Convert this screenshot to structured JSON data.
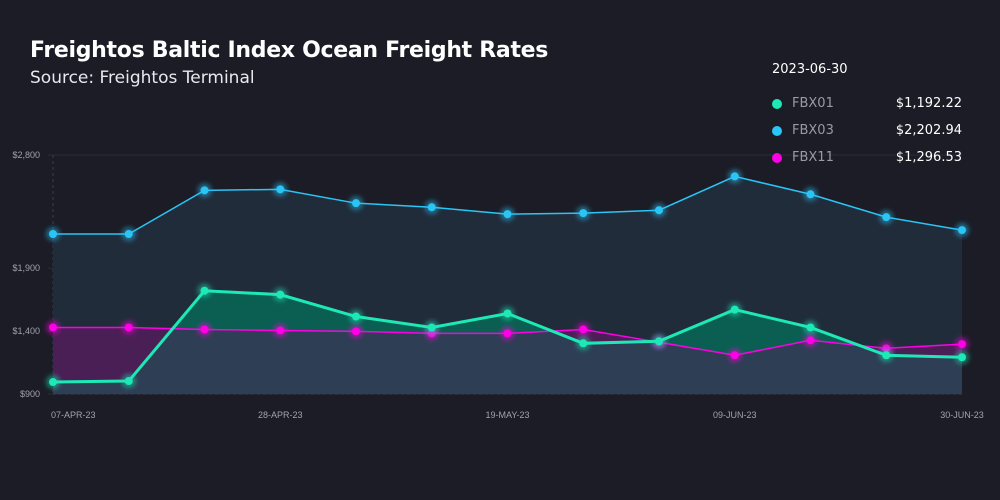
{
  "chart_data": {
    "type": "line",
    "title": "Freightos Baltic Index Ocean Freight Rates",
    "subtitle": "Source: Freightos Terminal",
    "x": [
      "07-APR-23",
      "14-APR-23",
      "21-APR-23",
      "28-APR-23",
      "05-MAY-23",
      "12-MAY-23",
      "19-MAY-23",
      "26-MAY-23",
      "02-JUN-23",
      "09-JUN-23",
      "16-JUN-23",
      "23-JUN-23",
      "30-JUN-23"
    ],
    "x_tick_labels": [
      "07-APR-23",
      "28-APR-23",
      "19-MAY-23",
      "09-JUN-23",
      "30-JUN-23"
    ],
    "y_tick_labels": [
      "$900",
      "$1,400",
      "$1,900",
      "$2,800"
    ],
    "y_ticks": [
      900,
      1400,
      1900,
      2800
    ],
    "ylim": [
      900,
      2800
    ],
    "grid": true,
    "legend_placement": "top-right",
    "series": [
      {
        "name": "FBX01",
        "color": "#1de9b6",
        "values": [
          995,
          1003,
          1721,
          1690,
          1516,
          1429,
          1540,
          1303,
          1319,
          1571,
          1429,
          1208,
          1192.22
        ]
      },
      {
        "name": "FBX03",
        "color": "#29c5f6",
        "values": [
          2172,
          2172,
          2519,
          2527,
          2417,
          2385,
          2330,
          2338,
          2361,
          2630,
          2488,
          2306,
          2202.94
        ]
      },
      {
        "name": "FBX11",
        "color": "#ff00e6",
        "values": [
          1429,
          1429,
          1413,
          1405,
          1398,
          1382,
          1382,
          1413,
          1311,
          1208,
          1327,
          1263,
          1296.53
        ]
      }
    ]
  },
  "legend": {
    "date": "2023-06-30",
    "items": [
      {
        "name": "FBX01",
        "value": "$1,192.22",
        "color": "#1de9b6"
      },
      {
        "name": "FBX03",
        "value": "$2,202.94",
        "color": "#29c5f6"
      },
      {
        "name": "FBX11",
        "value": "$1,296.53",
        "color": "#ff00e6"
      }
    ]
  }
}
